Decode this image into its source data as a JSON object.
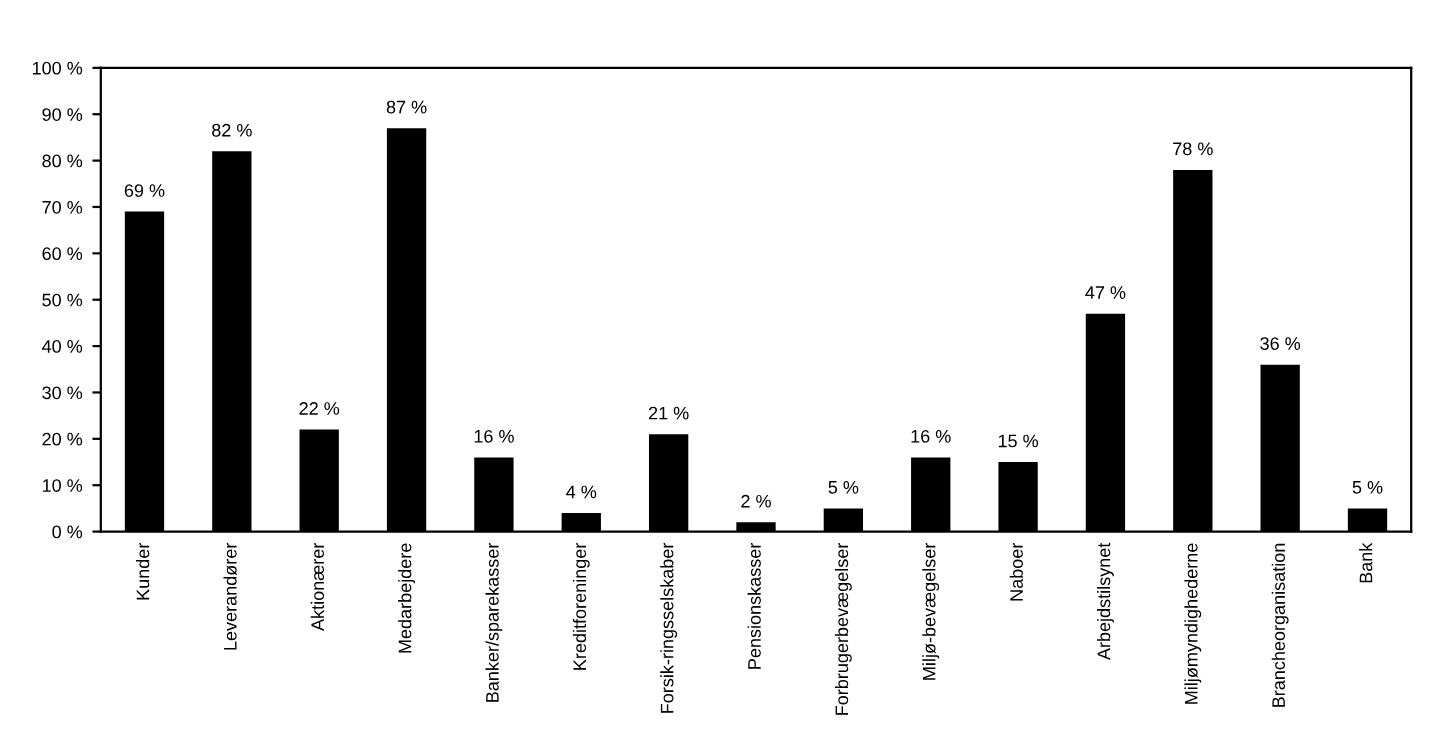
{
  "chart_data": {
    "type": "bar",
    "categories": [
      "Kunder",
      "Leverandører",
      "Aktionærer",
      "Medarbejdere",
      "Banker/sparekasser",
      "Kreditforeninger",
      "Forsik-ringsselskaber",
      "Pensionskasser",
      "Forbrugerbevægelser",
      "Miljø-bevægelser",
      "Naboer",
      "Arbejdstilsynet",
      "Miljømyndighederne",
      "Brancheorganisation",
      "Bank"
    ],
    "values": [
      69,
      82,
      22,
      87,
      16,
      4,
      21,
      2,
      5,
      16,
      15,
      47,
      78,
      36,
      5
    ],
    "value_labels": [
      "69 %",
      "82 %",
      "22 %",
      "87 %",
      "16 %",
      "4 %",
      "21 %",
      "2 %",
      "5 %",
      "16 %",
      "15 %",
      "47 %",
      "78 %",
      "36 %",
      "5 %"
    ],
    "color": "#000000",
    "ylim": [
      0,
      100
    ],
    "yticks": [
      {
        "value": 0,
        "label": "0 %"
      },
      {
        "value": 10,
        "label": "10 %"
      },
      {
        "value": 20,
        "label": "20 %"
      },
      {
        "value": 30,
        "label": "30 %"
      },
      {
        "value": 40,
        "label": "40 %"
      },
      {
        "value": 50,
        "label": "50 %"
      },
      {
        "value": 60,
        "label": "60 %"
      },
      {
        "value": 70,
        "label": "70 %"
      },
      {
        "value": 80,
        "label": "80 %"
      },
      {
        "value": 90,
        "label": "90 %"
      },
      {
        "value": 100,
        "label": "100 %"
      }
    ],
    "grid": false,
    "legend": false
  }
}
